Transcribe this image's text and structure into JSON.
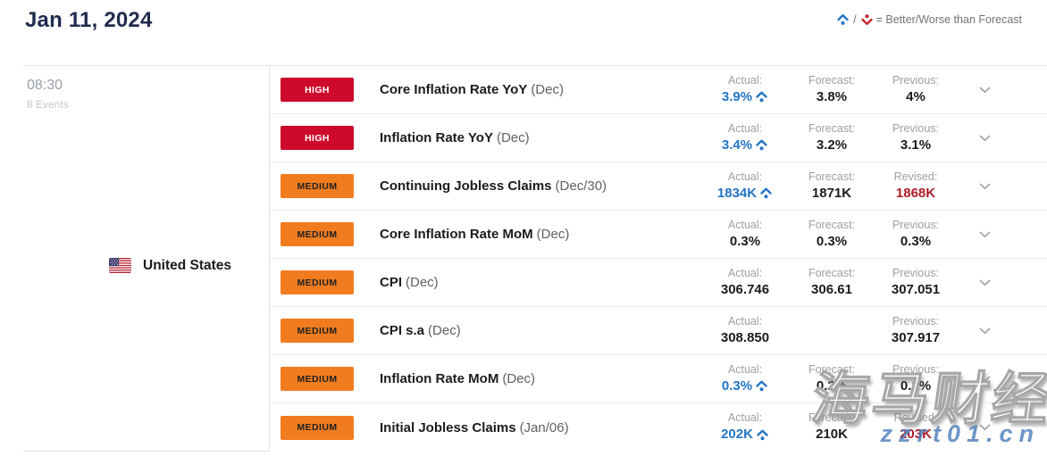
{
  "header": {
    "date_title": "Jan 11, 2024",
    "legend_separator": "/",
    "legend_text": "= Better/Worse than Forecast"
  },
  "group": {
    "time": "08:30",
    "events_count": "8 Events",
    "country": "United States"
  },
  "icons": {
    "better": "caret-up-dot",
    "worse": "caret-down-dot",
    "expand": "chevron-down",
    "flag": "us-flag"
  },
  "colors": {
    "impact_high": "#ce0a2c",
    "impact_medium": "#f17c20",
    "better_blue": "#2374c4",
    "revised_red": "#ae1c27",
    "title_navy": "#1f2c4d"
  },
  "rows": [
    {
      "impact": "HIGH",
      "name": "Core Inflation Rate YoY",
      "date": "(Dec)",
      "cols": [
        {
          "label": "Actual:",
          "value": "3.9%",
          "state": "better"
        },
        {
          "label": "Forecast:",
          "value": "3.8%",
          "state": "normal"
        },
        {
          "label": "Previous:",
          "value": "4%",
          "state": "normal"
        }
      ]
    },
    {
      "impact": "HIGH",
      "name": "Inflation Rate YoY",
      "date": "(Dec)",
      "cols": [
        {
          "label": "Actual:",
          "value": "3.4%",
          "state": "better"
        },
        {
          "label": "Forecast:",
          "value": "3.2%",
          "state": "normal"
        },
        {
          "label": "Previous:",
          "value": "3.1%",
          "state": "normal"
        }
      ]
    },
    {
      "impact": "MEDIUM",
      "name": "Continuing Jobless Claims",
      "date": "(Dec/30)",
      "cols": [
        {
          "label": "Actual:",
          "value": "1834K",
          "state": "better"
        },
        {
          "label": "Forecast:",
          "value": "1871K",
          "state": "normal"
        },
        {
          "label": "Revised:",
          "value": "1868K",
          "state": "revised"
        }
      ]
    },
    {
      "impact": "MEDIUM",
      "name": "Core Inflation Rate MoM",
      "date": "(Dec)",
      "cols": [
        {
          "label": "Actual:",
          "value": "0.3%",
          "state": "normal"
        },
        {
          "label": "Forecast:",
          "value": "0.3%",
          "state": "normal"
        },
        {
          "label": "Previous:",
          "value": "0.3%",
          "state": "normal"
        }
      ]
    },
    {
      "impact": "MEDIUM",
      "name": "CPI",
      "date": "(Dec)",
      "cols": [
        {
          "label": "Actual:",
          "value": "306.746",
          "state": "normal"
        },
        {
          "label": "Forecast:",
          "value": "306.61",
          "state": "normal"
        },
        {
          "label": "Previous:",
          "value": "307.051",
          "state": "normal"
        }
      ]
    },
    {
      "impact": "MEDIUM",
      "name": "CPI s.a",
      "date": "(Dec)",
      "cols": [
        {
          "label": "Actual:",
          "value": "308.850",
          "state": "normal"
        },
        {
          "label": "",
          "value": "",
          "state": "normal"
        },
        {
          "label": "Previous:",
          "value": "307.917",
          "state": "normal"
        }
      ]
    },
    {
      "impact": "MEDIUM",
      "name": "Inflation Rate MoM",
      "date": "(Dec)",
      "cols": [
        {
          "label": "Actual:",
          "value": "0.3%",
          "state": "better"
        },
        {
          "label": "Forecast:",
          "value": "0.2%",
          "state": "normal"
        },
        {
          "label": "Previous:",
          "value": "0.1%",
          "state": "normal"
        }
      ]
    },
    {
      "impact": "MEDIUM",
      "name": "Initial Jobless Claims",
      "date": "(Jan/06)",
      "cols": [
        {
          "label": "Actual:",
          "value": "202K",
          "state": "better"
        },
        {
          "label": "Forecast:",
          "value": "210K",
          "state": "normal"
        },
        {
          "label": "Revised:",
          "value": "203K",
          "state": "revised"
        }
      ]
    }
  ],
  "watermark": {
    "cn_text": "海马财经",
    "url_text": "zzrt01.cn"
  }
}
